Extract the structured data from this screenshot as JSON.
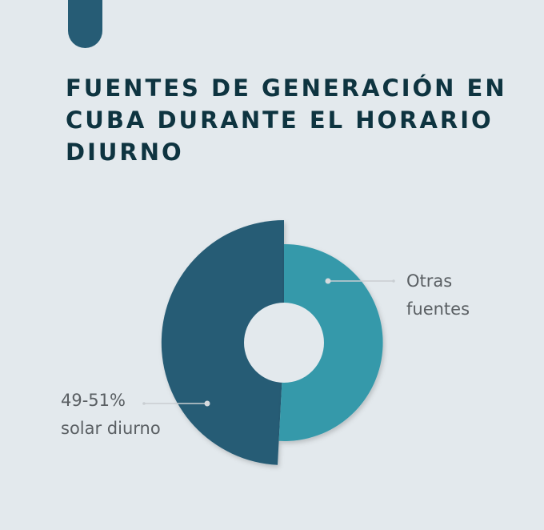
{
  "title": "FUENTES DE GENERACIÓN EN CUBA DURANTE EL HORARIO DIURNO",
  "labels": {
    "otras_line1": "Otras",
    "otras_line2": "fuentes",
    "solar_line1": "49-51%",
    "solar_line2": "solar diurno"
  },
  "colors": {
    "background": "#e3e9ed",
    "solar": "#265c75",
    "otras": "#3499aa",
    "title": "#0e3440",
    "label_text": "#5a5f63"
  },
  "chart_data": {
    "type": "pie",
    "variant": "donut",
    "slices": [
      {
        "label": "Otras fuentes",
        "value": 50
      },
      {
        "label": "49-51% solar diurno",
        "value": 50
      }
    ]
  }
}
